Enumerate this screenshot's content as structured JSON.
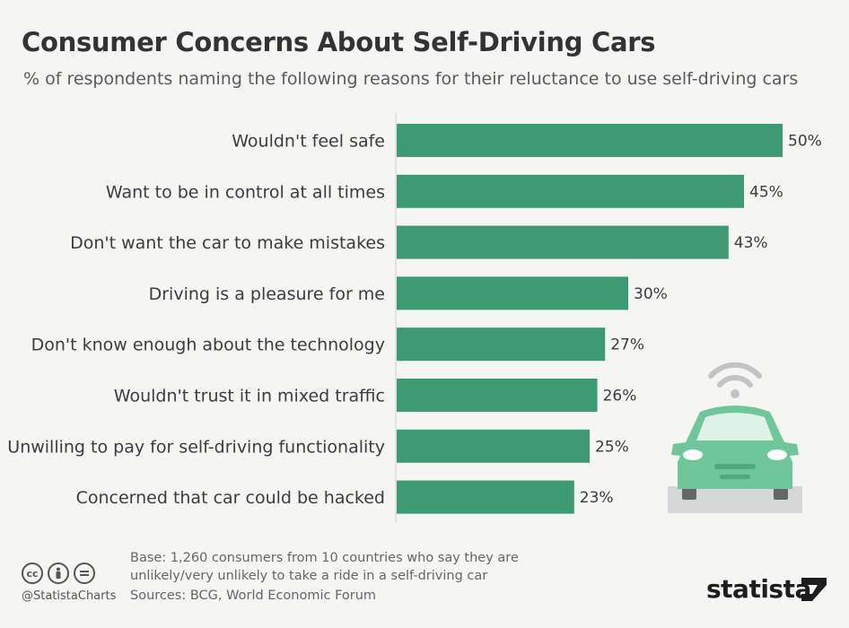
{
  "title": "Consumer Concerns About Self-Driving Cars",
  "subtitle": "% of respondents naming the following reasons for their reluctance to use self-driving cars",
  "chart_data": {
    "type": "bar",
    "orientation": "horizontal",
    "categories": [
      "Wouldn't feel safe",
      "Want to be in control at all times",
      "Don't want the car to make mistakes",
      "Driving is a pleasure for me",
      "Don't know enough about the technology",
      "Wouldn't trust it in mixed traffic",
      "Unwilling to pay for self-driving functionality",
      "Concerned that car could be hacked"
    ],
    "values": [
      50,
      45,
      43,
      30,
      27,
      26,
      25,
      23
    ],
    "value_labels": [
      "50%",
      "45%",
      "43%",
      "30%",
      "27%",
      "26%",
      "25%",
      "23%"
    ],
    "unit": "%",
    "xlim": [
      0,
      50
    ],
    "grid": false,
    "legend": "none",
    "bar_color": "#3e9a72"
  },
  "footer": {
    "base": "Base: 1,260 consumers from 10 countries who say they are unlikely/very unlikely to take a ride in a self-driving car",
    "sources": "Sources: BCG, World Economic Forum",
    "handle": "@StatistaCharts",
    "brand": "statista"
  },
  "icons": [
    "cc-icon",
    "by-icon",
    "nd-icon",
    "self-driving-car-icon",
    "wifi-signal-icon",
    "statista-logo-icon"
  ],
  "colors": {
    "bar": "#3e9a72",
    "car": "#6fc69a",
    "background": "#f5f5f4"
  }
}
